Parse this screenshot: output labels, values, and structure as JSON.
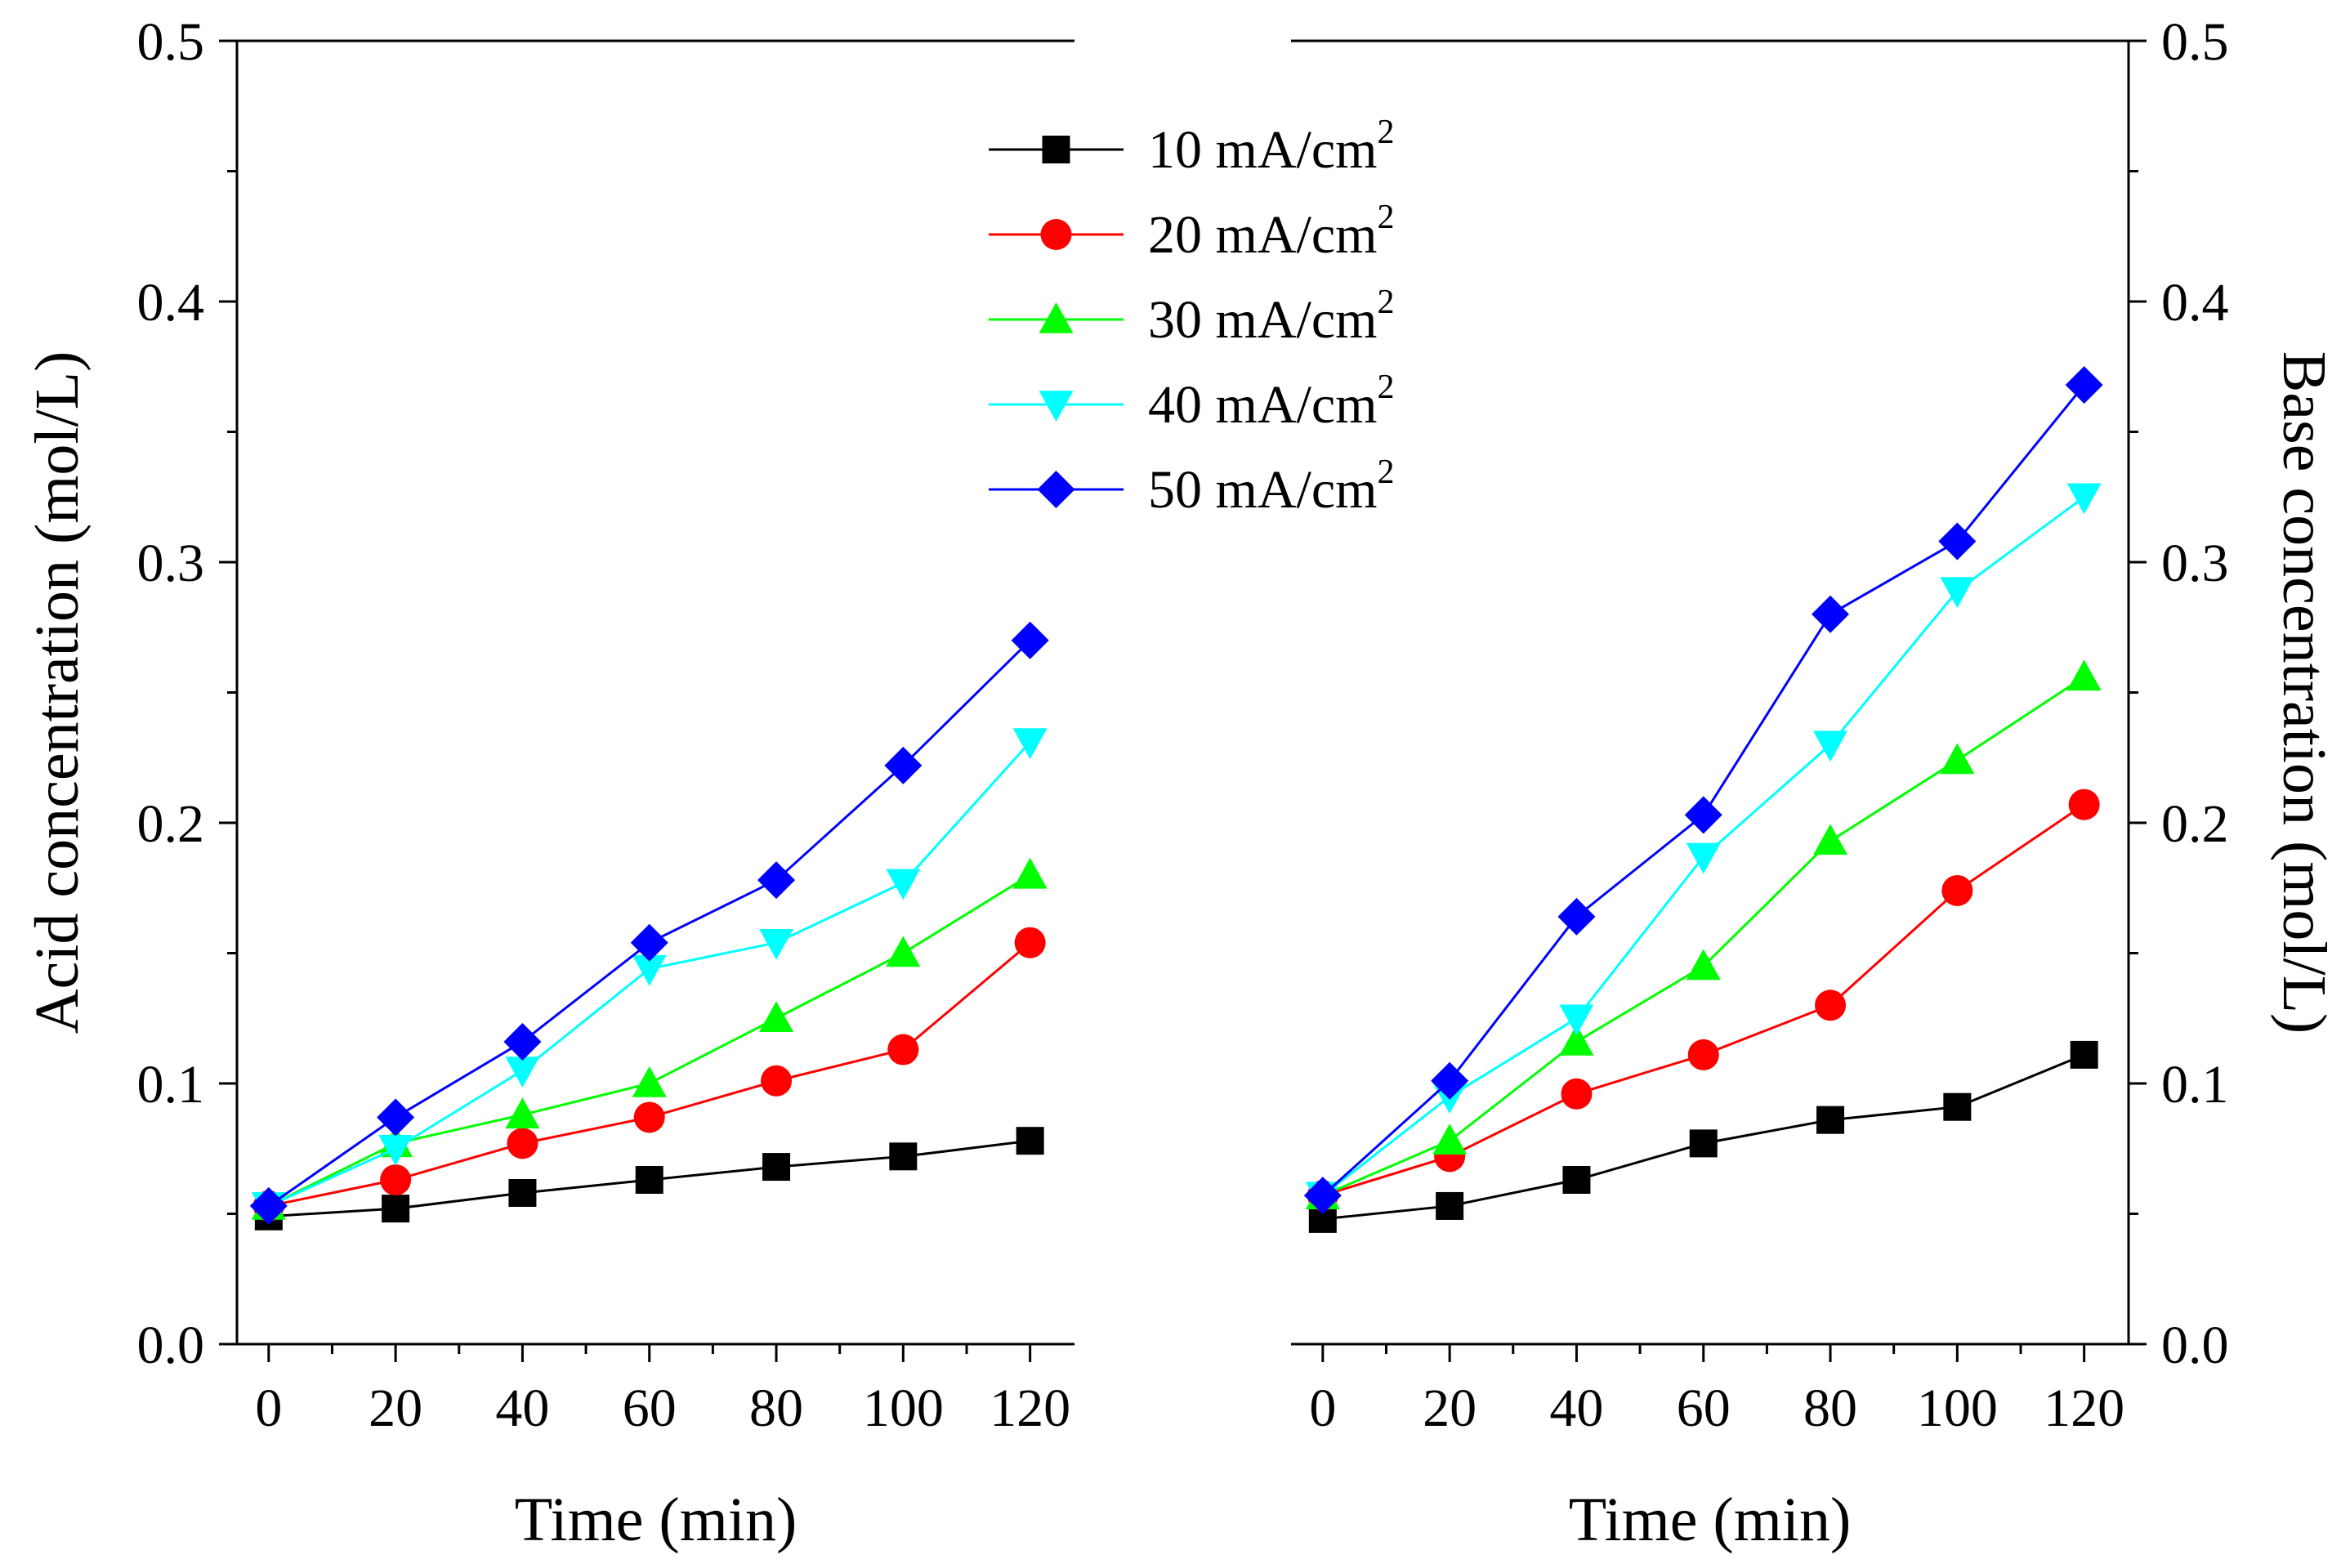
{
  "chart_data": [
    {
      "type": "line",
      "name": "acid",
      "title": "",
      "xlabel": "Time (min)",
      "ylabel": "Acid concentration (mol/L)",
      "y_axis_side": "left",
      "xlim": [
        -5,
        127
      ],
      "ylim": [
        0.0,
        0.5
      ],
      "x_ticks": [
        0,
        20,
        40,
        60,
        80,
        100,
        120
      ],
      "y_ticks": [
        0.0,
        0.1,
        0.2,
        0.3,
        0.4,
        0.5
      ],
      "x_tick_labels": [
        "0",
        "20",
        "40",
        "60",
        "80",
        "100",
        "120"
      ],
      "y_tick_labels": [
        "0.0",
        "0.1",
        "0.2",
        "0.3",
        "0.4",
        "0.5"
      ],
      "grid": false,
      "x": [
        0,
        20,
        40,
        60,
        80,
        100,
        120
      ],
      "series": [
        {
          "name": "10 mA/cm2",
          "values": [
            0.049,
            0.052,
            0.058,
            0.063,
            0.068,
            0.072,
            0.078
          ]
        },
        {
          "name": "20 mA/cm2",
          "values": [
            0.053,
            0.063,
            0.077,
            0.087,
            0.101,
            0.113,
            0.154
          ]
        },
        {
          "name": "30 mA/cm2",
          "values": [
            0.053,
            0.077,
            0.088,
            0.1,
            0.125,
            0.15,
            0.18
          ]
        },
        {
          "name": "40 mA/cm2",
          "values": [
            0.053,
            0.075,
            0.105,
            0.144,
            0.154,
            0.177,
            0.231
          ]
        },
        {
          "name": "50 mA/cm2",
          "values": [
            0.053,
            0.087,
            0.116,
            0.154,
            0.178,
            0.222,
            0.27
          ]
        }
      ]
    },
    {
      "type": "line",
      "name": "base",
      "title": "",
      "xlabel": "Time (min)",
      "ylabel": "Base concentration (mol/L)",
      "y_axis_side": "right",
      "xlim": [
        -5,
        127
      ],
      "ylim": [
        0.0,
        0.5
      ],
      "x_ticks": [
        0,
        20,
        40,
        60,
        80,
        100,
        120
      ],
      "y_ticks": [
        0.0,
        0.1,
        0.2,
        0.3,
        0.4,
        0.5
      ],
      "x_tick_labels": [
        "0",
        "20",
        "40",
        "60",
        "80",
        "100",
        "120"
      ],
      "y_tick_labels": [
        "0.0",
        "0.1",
        "0.2",
        "0.3",
        "0.4",
        "0.5"
      ],
      "grid": false,
      "x": [
        0,
        20,
        40,
        60,
        80,
        100,
        120
      ],
      "series": [
        {
          "name": "10 mA/cm2",
          "values": [
            0.048,
            0.053,
            0.063,
            0.077,
            0.086,
            0.091,
            0.111
          ]
        },
        {
          "name": "20 mA/cm2",
          "values": [
            0.057,
            0.072,
            0.096,
            0.111,
            0.13,
            0.174,
            0.207
          ]
        },
        {
          "name": "30 mA/cm2",
          "values": [
            0.057,
            0.078,
            0.116,
            0.145,
            0.193,
            0.224,
            0.256
          ]
        },
        {
          "name": "40 mA/cm2",
          "values": [
            0.057,
            0.095,
            0.125,
            0.187,
            0.23,
            0.289,
            0.325
          ]
        },
        {
          "name": "50 mA/cm2",
          "values": [
            0.057,
            0.101,
            0.164,
            0.203,
            0.28,
            0.308,
            0.368
          ]
        }
      ]
    }
  ],
  "legend": {
    "placement": "top-center",
    "entries": [
      {
        "value": "10",
        "unit": "mA/cm",
        "sup": "2",
        "color": "#000000",
        "marker": "square"
      },
      {
        "value": "20",
        "unit": "mA/cm",
        "sup": "2",
        "color": "#ff0000",
        "marker": "circle"
      },
      {
        "value": "30",
        "unit": "mA/cm",
        "sup": "2",
        "color": "#00ff00",
        "marker": "triangle-up"
      },
      {
        "value": "40",
        "unit": "mA/cm",
        "sup": "2",
        "color": "#00ffff",
        "marker": "triangle-down"
      },
      {
        "value": "50",
        "unit": "mA/cm",
        "sup": "2",
        "color": "#0000ff",
        "marker": "diamond"
      }
    ]
  }
}
